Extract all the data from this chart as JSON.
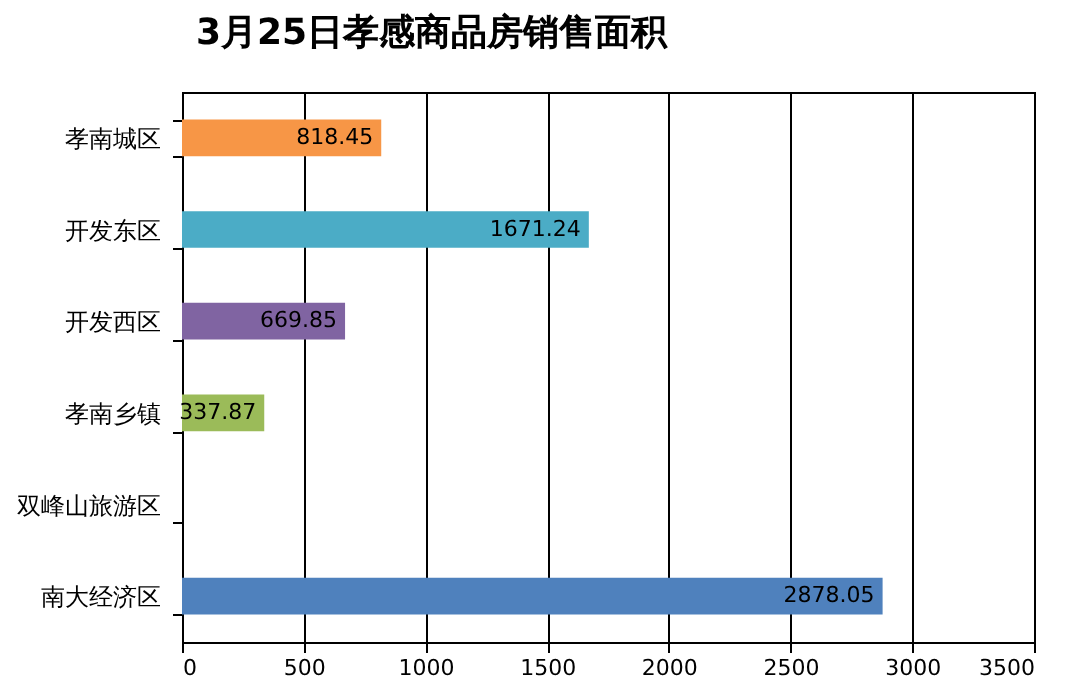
{
  "chart_data": {
    "type": "bar",
    "orientation": "horizontal",
    "title": "3月25日孝感商品房销售面积",
    "categories": [
      "孝南城区",
      "开发东区",
      "开发西区",
      "孝南乡镇",
      "双峰山旅游区",
      "南大经济区"
    ],
    "values": [
      818.45,
      1671.24,
      669.85,
      337.87,
      null,
      2878.05
    ],
    "colors": [
      "#f79646",
      "#4bacc6",
      "#8064a2",
      "#9bbb59",
      "#ffffff",
      "#4f81bd"
    ],
    "xlim": [
      0,
      3500
    ],
    "xticks": [
      0,
      500,
      1000,
      1500,
      2000,
      2500,
      3000,
      3500
    ],
    "grid": "x",
    "data_labels": true
  }
}
